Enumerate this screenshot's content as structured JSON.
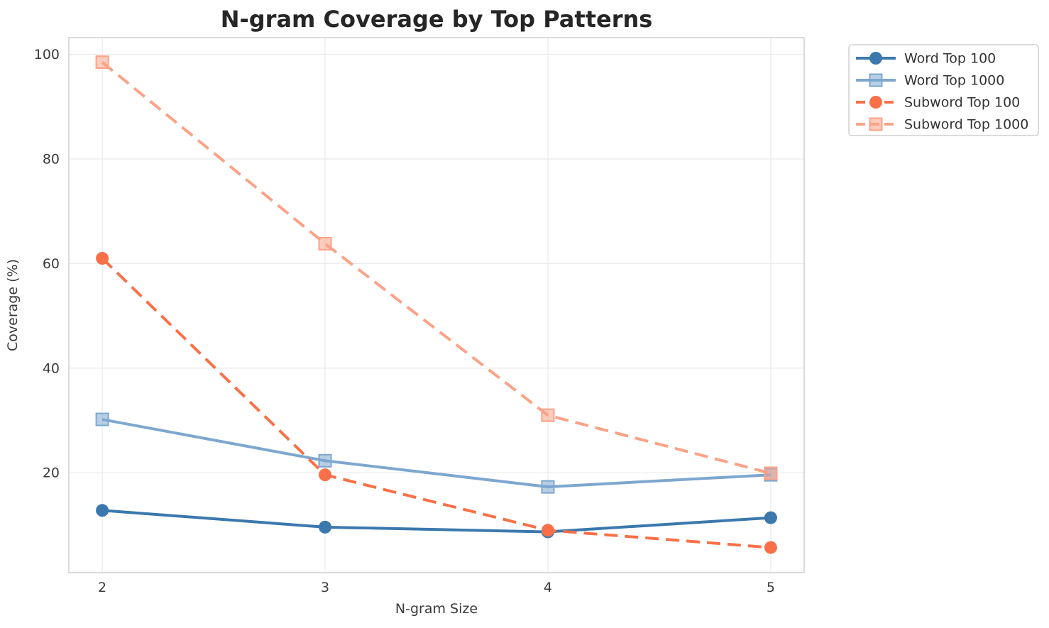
{
  "chart_data": {
    "type": "line",
    "title": "N-gram Coverage by Top Patterns",
    "xlabel": "N-gram Size",
    "ylabel": "Coverage (%)",
    "x": [
      2,
      3,
      4,
      5
    ],
    "xticks": [
      "2",
      "3",
      "4",
      "5"
    ],
    "yticks": [
      20,
      40,
      60,
      80,
      100
    ],
    "xlim": [
      1.85,
      5.15
    ],
    "ylim": [
      0.9,
      103.2
    ],
    "grid": true,
    "legend_position": "outside-top-right",
    "series": [
      {
        "name": "Word Top 100",
        "values": [
          12.8,
          9.6,
          8.7,
          11.4
        ],
        "color": "#3b78ad",
        "marker": "circle",
        "dash": "solid"
      },
      {
        "name": "Word Top 1000",
        "values": [
          30.2,
          22.3,
          17.3,
          19.6
        ],
        "color": "#7da7cf",
        "marker": "square",
        "dash": "solid"
      },
      {
        "name": "Subword Top 100",
        "values": [
          61.0,
          19.6,
          9.0,
          5.7
        ],
        "color": "#f97048",
        "marker": "circle",
        "dash": "dashed"
      },
      {
        "name": "Subword Top 1000",
        "values": [
          98.5,
          63.8,
          31.0,
          19.9
        ],
        "color": "#fba287",
        "marker": "square",
        "dash": "dashed"
      }
    ],
    "colors": {
      "title": "#262626",
      "tick_label": "#3a3a3a",
      "axis_label": "#3a3a3a",
      "legend_text": "#333333",
      "gridline": "#ebebeb",
      "spine": "#cfcfcf",
      "background": "#ffffff"
    }
  }
}
